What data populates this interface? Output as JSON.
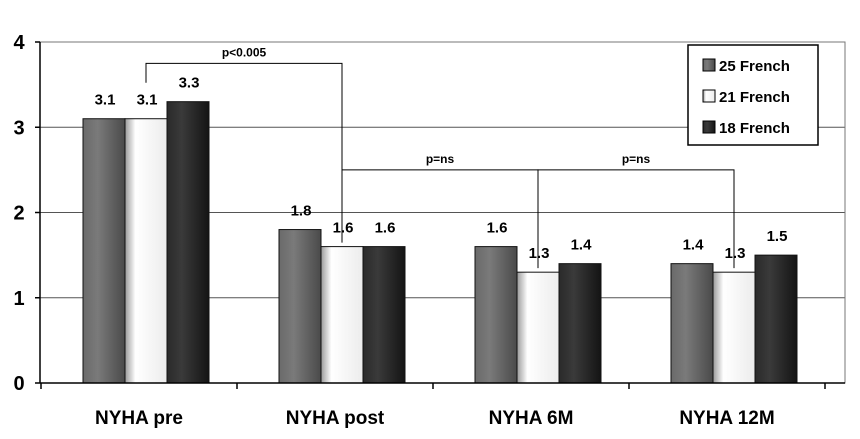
{
  "chart_data": {
    "type": "bar",
    "categories": [
      "NYHA pre",
      "NYHA post",
      "NYHA 6M",
      "NYHA 12M"
    ],
    "series": [
      {
        "name": "25 French",
        "values": [
          3.1,
          1.8,
          1.6,
          1.4
        ],
        "labels": [
          "3.1",
          "1.8",
          "1.6",
          "1.4"
        ],
        "color": "#6a6a6a"
      },
      {
        "name": "21 French",
        "values": [
          3.1,
          1.6,
          1.3,
          1.3
        ],
        "labels": [
          "3.1",
          "1.6",
          "1.3",
          "1.3"
        ],
        "color": "#f2f2f2"
      },
      {
        "name": "18 French",
        "values": [
          3.3,
          1.6,
          1.4,
          1.5
        ],
        "labels": [
          "3.3",
          "1.6",
          "1.4",
          "1.5"
        ],
        "color": "#2a2a2a"
      }
    ],
    "y_ticks": [
      {
        "value": 0,
        "label": "0"
      },
      {
        "value": 1,
        "label": "1"
      },
      {
        "value": 2,
        "label": "2"
      },
      {
        "value": 3,
        "label": "3"
      },
      {
        "value": 4,
        "label": "4"
      }
    ],
    "ylim": [
      0,
      4
    ],
    "grid": true,
    "legend": "top-right",
    "annotations": [
      {
        "text": "p<0.005",
        "from_category": 0,
        "from_series": 1,
        "to_category": 1,
        "to_series": 1,
        "level": 3.75
      },
      {
        "text": "p=ns",
        "from_category": 1,
        "from_series": 1,
        "to_category": 2,
        "to_series": 1,
        "level": 2.5
      },
      {
        "text": "p=ns",
        "from_category": 2,
        "from_series": 1,
        "to_category": 3,
        "to_series": 1,
        "level": 2.5
      }
    ]
  }
}
